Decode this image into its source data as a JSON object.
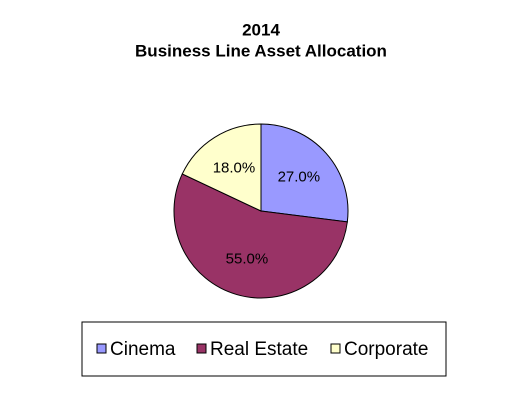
{
  "chart_data": {
    "type": "pie",
    "title": "2014",
    "subtitle": "Business Line Asset Allocation",
    "categories": [
      "Cinema",
      "Real Estate",
      "Corporate"
    ],
    "values": [
      27,
      55,
      18
    ],
    "value_labels": [
      "27.0%",
      "55.0%",
      "18.0%"
    ],
    "colors": [
      "#9999ff",
      "#993366",
      "#ffffcc"
    ],
    "legend": "bottom"
  }
}
